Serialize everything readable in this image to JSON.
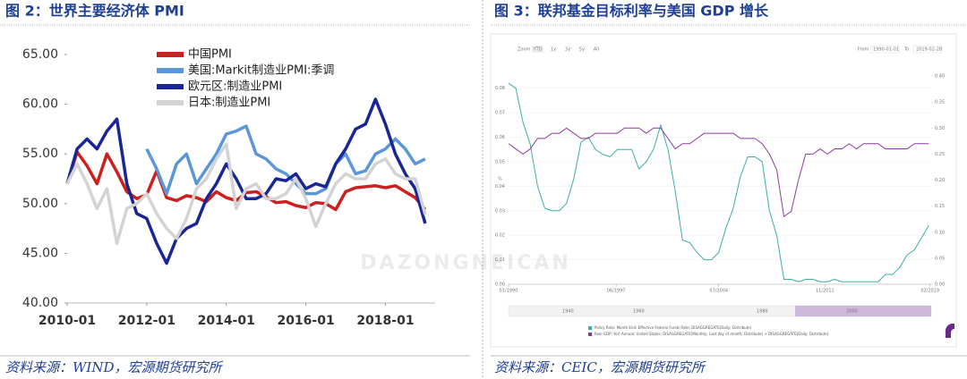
{
  "watermark": "DAZONGNEICAN",
  "chart_data": [
    {
      "type": "line",
      "title": "图 2：世界主要经济体 PMI",
      "source": "资料来源：WIND，宏源期货研究所",
      "x": [
        2010,
        2010.25,
        2010.5,
        2010.75,
        2011,
        2011.25,
        2011.5,
        2011.75,
        2012,
        2012.25,
        2012.5,
        2012.75,
        2013,
        2013.25,
        2013.5,
        2013.75,
        2014,
        2014.25,
        2014.5,
        2014.75,
        2015,
        2015.25,
        2015.5,
        2015.75,
        2016,
        2016.25,
        2016.5,
        2016.75,
        2017,
        2017.25,
        2017.5,
        2017.75,
        2018,
        2018.25,
        2018.5,
        2018.75,
        2019
      ],
      "series": [
        {
          "name": "中国PMI",
          "color": "#cc2020",
          "values": [
            52.0,
            55.2,
            53.8,
            52.0,
            55.0,
            53.2,
            51.2,
            50.5,
            50.9,
            53.3,
            50.6,
            50.3,
            50.8,
            50.6,
            50.2,
            51.2,
            50.6,
            50.3,
            51.1,
            51.2,
            50.7,
            50.1,
            50.2,
            49.8,
            49.6,
            50.1,
            50.0,
            49.4,
            51.2,
            51.6,
            51.7,
            51.8,
            51.6,
            51.8,
            51.2,
            50.6,
            49.4
          ]
        },
        {
          "name": "美国:Markit制造业PMI:季调",
          "color": "#5b97d8",
          "values": [
            null,
            null,
            null,
            null,
            null,
            null,
            null,
            null,
            55.5,
            53.5,
            51.0,
            54.0,
            55.0,
            52.0,
            53.5,
            55.0,
            57.0,
            57.3,
            57.8,
            55.0,
            54.5,
            53.5,
            53.0,
            52.0,
            51.0,
            51.0,
            51.5,
            54.0,
            55.0,
            53.0,
            53.3,
            55.0,
            55.5,
            56.5,
            55.5,
            54.0,
            54.5
          ]
        },
        {
          "name": "欧元区:制造业PMI",
          "color": "#1a2596",
          "values": [
            52.0,
            55.5,
            56.5,
            55.5,
            57.3,
            58.5,
            52.0,
            49.0,
            48.5,
            46.0,
            44.0,
            46.5,
            47.5,
            48.0,
            50.5,
            52.0,
            54.0,
            52.5,
            50.5,
            50.5,
            51.0,
            52.5,
            52.3,
            53.0,
            51.5,
            52.0,
            51.7,
            54.0,
            55.5,
            57.5,
            58.0,
            60.5,
            58.0,
            55.0,
            53.0,
            51.5,
            48.0
          ]
        },
        {
          "name": "日本:制造业PMI",
          "color": "#d3d3d3",
          "values": [
            52.0,
            54.0,
            52.0,
            49.5,
            51.5,
            46.0,
            49.5,
            50.0,
            51.0,
            49.0,
            47.5,
            46.5,
            48.5,
            51.5,
            52.5,
            54.5,
            56.0,
            49.5,
            51.5,
            52.0,
            50.5,
            50.5,
            51.0,
            52.5,
            50.5,
            47.7,
            50.0,
            52.0,
            53.0,
            52.5,
            52.5,
            54.0,
            54.5,
            53.0,
            52.5,
            52.5,
            48.9
          ]
        }
      ],
      "xlim": [
        2010,
        2019.25
      ],
      "xticks": [
        {
          "value": 2010,
          "label": "2010-01"
        },
        {
          "value": 2012,
          "label": "2012-01"
        },
        {
          "value": 2014,
          "label": "2014-01"
        },
        {
          "value": 2016,
          "label": "2016-01"
        },
        {
          "value": 2018,
          "label": "2018-01"
        }
      ],
      "ylim": [
        40,
        65
      ],
      "yticks": [
        {
          "value": 40,
          "label": "40.00"
        },
        {
          "value": 45,
          "label": "45.00"
        },
        {
          "value": 50,
          "label": "50.00"
        },
        {
          "value": 55,
          "label": "55.00"
        },
        {
          "value": 60,
          "label": "60.00"
        },
        {
          "value": 65,
          "label": "65.00"
        }
      ],
      "grid": false,
      "legend": "top"
    },
    {
      "type": "line",
      "title": "图 3：联邦基金目标利率与美国 GDP 增长",
      "source": "资料来源：CEIC，宏源期货研究所",
      "zoom_label": "Zoom",
      "range_buttons": [
        "YTD",
        "1y",
        "3y",
        "5y",
        "All"
      ],
      "from_label": "From",
      "from_date": "1990-01-01",
      "to_label": "To",
      "to_date": "2019-02-28",
      "navigator_labels": [
        "1940",
        "1960",
        "1980",
        "2000"
      ],
      "y_label": "%",
      "x": [
        1990,
        1990.5,
        1991,
        1991.5,
        1992,
        1992.5,
        1993,
        1993.5,
        1994,
        1994.5,
        1995,
        1995.5,
        1996,
        1996.5,
        1997,
        1997.5,
        1998,
        1998.5,
        1999,
        1999.5,
        2000,
        2000.5,
        2001,
        2001.5,
        2002,
        2002.5,
        2003,
        2003.5,
        2004,
        2004.5,
        2005,
        2005.5,
        2006,
        2006.5,
        2007,
        2007.5,
        2008,
        2008.5,
        2009,
        2009.5,
        2010,
        2010.5,
        2011,
        2011.5,
        2012,
        2012.5,
        2013,
        2013.5,
        2014,
        2014.5,
        2015,
        2015.5,
        2016,
        2016.5,
        2017,
        2017.5,
        2018,
        2018.5,
        2019
      ],
      "series": [
        {
          "name": "Policy Rate: Month End: Effective Federal Funds Rate; DISAGGREGATE(Daily; Distribute)",
          "color": "#3aaea6",
          "values": [
            0.082,
            0.08,
            0.066,
            0.057,
            0.04,
            0.031,
            0.03,
            0.03,
            0.033,
            0.043,
            0.058,
            0.06,
            0.055,
            0.053,
            0.052,
            0.055,
            0.055,
            0.055,
            0.047,
            0.05,
            0.055,
            0.065,
            0.055,
            0.038,
            0.018,
            0.017,
            0.013,
            0.01,
            0.01,
            0.013,
            0.023,
            0.031,
            0.044,
            0.052,
            0.052,
            0.05,
            0.03,
            0.02,
            0.002,
            0.002,
            0.001,
            0.002,
            0.002,
            0.001,
            0.001,
            0.002,
            0.001,
            0.001,
            0.001,
            0.001,
            0.001,
            0.001,
            0.004,
            0.004,
            0.007,
            0.012,
            0.014,
            0.019,
            0.024
          ]
        },
        {
          "name": "Real GDP: YoY: Annual: United States; DISAGGREGATE(Monthly; Last day of month; Distribute) > DISAGGREGATE(Daily; Distribute)",
          "color": "#8e3a9d",
          "axis": "y2",
          "values": [
            0.27,
            0.26,
            0.25,
            0.26,
            0.28,
            0.28,
            0.29,
            0.29,
            0.3,
            0.29,
            0.28,
            0.28,
            0.29,
            0.29,
            0.29,
            0.29,
            0.3,
            0.3,
            0.3,
            0.29,
            0.3,
            0.3,
            0.28,
            0.26,
            0.27,
            0.27,
            0.28,
            0.29,
            0.29,
            0.29,
            0.29,
            0.29,
            0.28,
            0.28,
            0.28,
            0.27,
            0.25,
            0.22,
            0.13,
            0.14,
            0.2,
            0.25,
            0.25,
            0.26,
            0.25,
            0.26,
            0.26,
            0.27,
            0.26,
            0.27,
            0.27,
            0.27,
            0.26,
            0.26,
            0.26,
            0.26,
            0.27,
            0.27,
            0.27
          ]
        }
      ],
      "xlim": [
        1990,
        2019.16
      ],
      "xticks": [
        {
          "value": 1990,
          "label": "01/1990"
        },
        {
          "value": 1997.42,
          "label": "06/1997"
        },
        {
          "value": 2004.5,
          "label": "07/2004"
        },
        {
          "value": 2011.83,
          "label": "11/2011"
        },
        {
          "value": 2019.08,
          "label": "02/2019"
        }
      ],
      "ylim": [
        0,
        0.085
      ],
      "yticks": [
        {
          "value": 0,
          "label": "0.00"
        },
        {
          "value": 0.01,
          "label": "0.01"
        },
        {
          "value": 0.02,
          "label": "0.02"
        },
        {
          "value": 0.03,
          "label": "0.03"
        },
        {
          "value": 0.04,
          "label": "0.04"
        },
        {
          "value": 0.05,
          "label": "0.05"
        },
        {
          "value": 0.06,
          "label": "0.06"
        },
        {
          "value": 0.07,
          "label": "0.07"
        },
        {
          "value": 0.08,
          "label": "0.08"
        }
      ],
      "y2lim": [
        0,
        0.4
      ],
      "y2ticks": [
        {
          "value": 0,
          "label": "0.00"
        },
        {
          "value": 0.05,
          "label": "0.05"
        },
        {
          "value": 0.1,
          "label": "0.10"
        },
        {
          "value": 0.15,
          "label": "0.15"
        },
        {
          "value": 0.2,
          "label": "0.20"
        },
        {
          "value": 0.25,
          "label": "0.25"
        },
        {
          "value": 0.3,
          "label": "0.30"
        },
        {
          "value": 0.35,
          "label": "0.35"
        },
        {
          "value": 0.4,
          "label": "0.40"
        }
      ],
      "grid": true,
      "legend": "bottom"
    }
  ]
}
